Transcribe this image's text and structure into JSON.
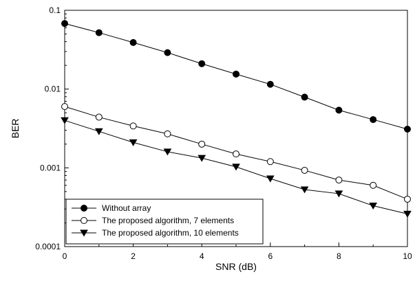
{
  "chart_data": {
    "type": "line",
    "xlabel": "SNR (dB)",
    "ylabel": "BER",
    "x_scale": "linear",
    "y_scale": "log",
    "xlim": [
      0,
      10
    ],
    "ylim": [
      0.0001,
      0.1
    ],
    "x_ticks": [
      0,
      2,
      4,
      6,
      8,
      10
    ],
    "x_tick_labels": [
      "0",
      "2",
      "4",
      "6",
      "8",
      "10"
    ],
    "y_ticks": [
      0.0001,
      0.001,
      0.01,
      0.1
    ],
    "y_tick_labels": [
      "0.0001",
      "0.001",
      "0.01",
      "0.1"
    ],
    "grid": false,
    "legend_position": "bottom-left",
    "x": [
      0,
      1,
      2,
      3,
      4,
      5,
      6,
      7,
      8,
      9,
      10
    ],
    "series": [
      {
        "name": "Without array",
        "marker": "filled-circle",
        "values": [
          0.068,
          0.052,
          0.039,
          0.029,
          0.021,
          0.0155,
          0.0115,
          0.0079,
          0.0054,
          0.0041,
          0.0031
        ]
      },
      {
        "name": "The proposed algorithm, 7 elements",
        "marker": "open-circle",
        "values": [
          0.006,
          0.0044,
          0.0034,
          0.0027,
          0.002,
          0.0015,
          0.0012,
          0.00093,
          0.0007,
          0.0006,
          0.0004
        ]
      },
      {
        "name": "The proposed algorithm, 10 elements",
        "marker": "filled-triangle-down",
        "values": [
          0.004,
          0.0029,
          0.0021,
          0.0016,
          0.00133,
          0.00103,
          0.00073,
          0.00053,
          0.00047,
          0.00033,
          0.00026
        ]
      }
    ],
    "colors": {
      "line": "#000000",
      "marker_fill": "#000000",
      "marker_open_fill": "#ffffff",
      "background": "#ffffff"
    }
  }
}
